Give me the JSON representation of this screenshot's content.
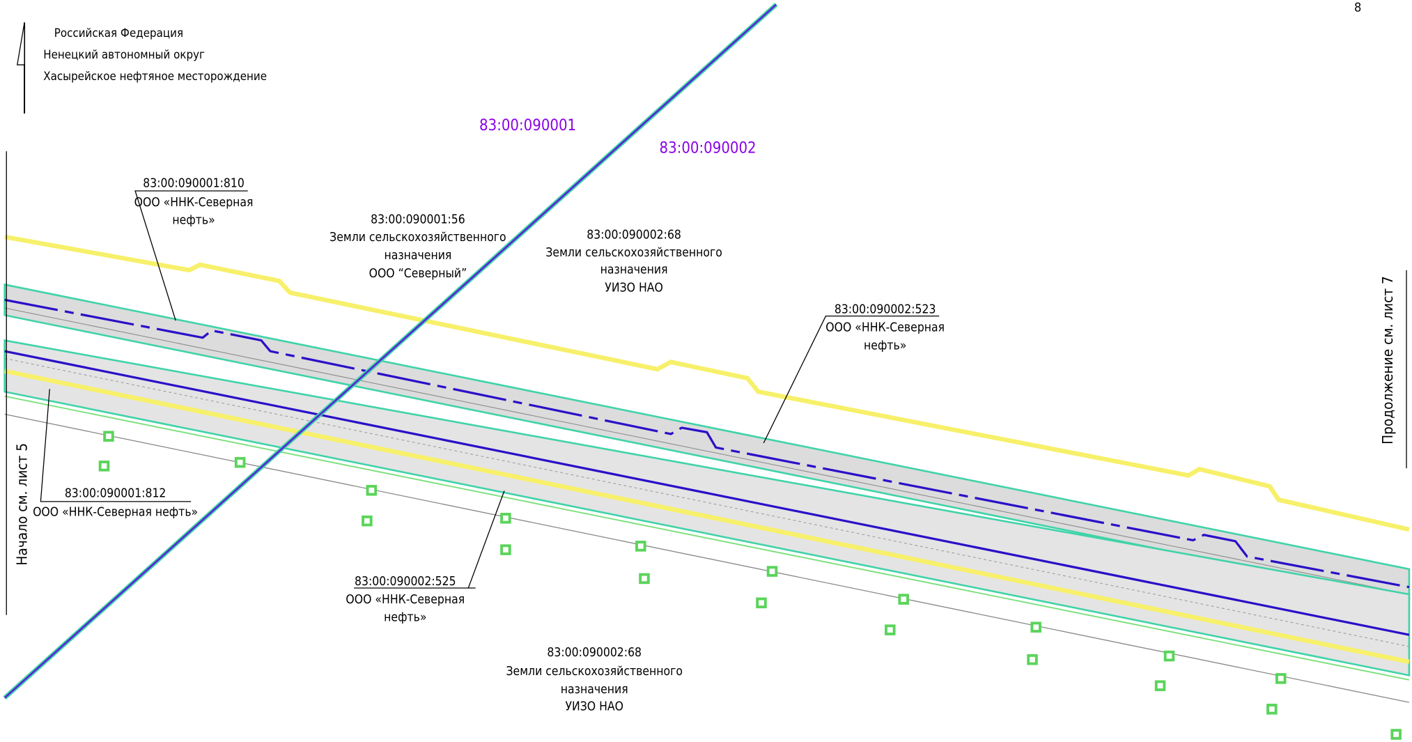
{
  "page_number": "8",
  "location": [
    "Российская Федерация",
    "Ненецкий автономный округ",
    "Хасырейское нефтяное месторождение"
  ],
  "cadastral_blocks": [
    "83:00:090001",
    "83:00:090002"
  ],
  "parcels": [
    {
      "number": "83:00:090001:810",
      "lines": [
        "ООО «ННК-Северная",
        "нефть»"
      ]
    },
    {
      "number": "83:00:090001:56",
      "lines": [
        "Земли сельскохозяйственного",
        "назначения",
        "ООО “Северный”"
      ]
    },
    {
      "number": "83:00:090002:68",
      "lines": [
        "Земли сельскохозяйственного",
        "назначения",
        "УИЗО НАО"
      ]
    },
    {
      "number": "83:00:090002:523",
      "lines": [
        "ООО «ННК-Северная",
        "нефть»"
      ]
    },
    {
      "number": "83:00:090001:812",
      "lines": [
        "ООО «ННК-Северная нефть»"
      ]
    },
    {
      "number": "83:00:090002:525",
      "lines": [
        "ООО «ННК-Северная",
        "нефть»"
      ]
    },
    {
      "number": "83:00:090002:68",
      "lines": [
        "Земли сельскохозяйственного",
        "назначения",
        "УИЗО НАО"
      ]
    }
  ],
  "side_notes": {
    "start": "Начало см. лист 5",
    "continuation": "Продолжение см. лист 7"
  }
}
